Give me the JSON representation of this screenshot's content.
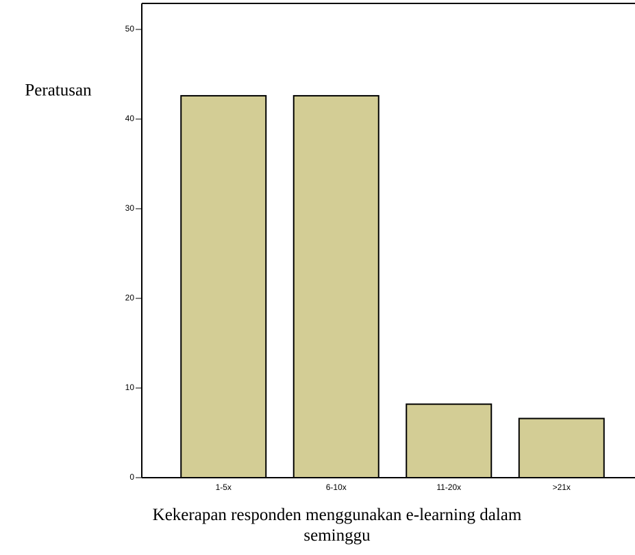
{
  "chart_data": {
    "type": "bar",
    "categories": [
      "1-5x",
      "6-10x",
      "11-20x",
      ">21x"
    ],
    "values": [
      42.6,
      42.6,
      8.2,
      6.6
    ],
    "color": "#d3cd95",
    "ylim": [
      0,
      52.9
    ],
    "yticks": [
      0,
      10,
      20,
      30,
      40,
      50
    ],
    "y_label": "Peratusan",
    "x_label": "Kekerapan responden menggunakan e-learning dalam seminggu"
  }
}
